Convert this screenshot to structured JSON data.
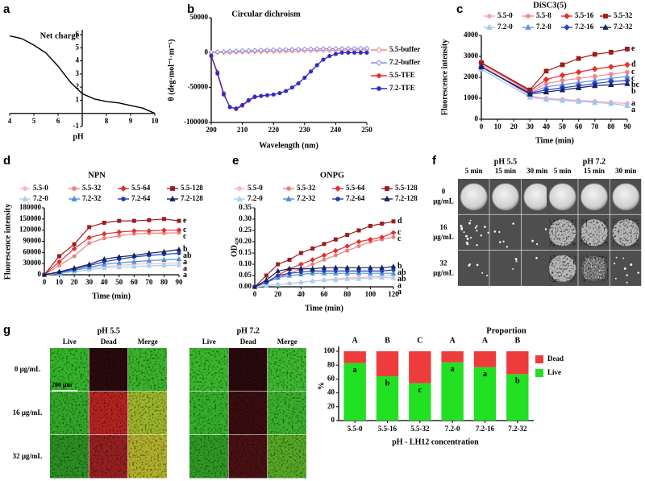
{
  "chart_data": [
    {
      "type": "line",
      "label": "a",
      "title": "Net charge",
      "xlabel": "pH",
      "axis_position": "center",
      "x": [
        4,
        4.5,
        5,
        5.5,
        6,
        6.5,
        7,
        7.5,
        8,
        8.5,
        9,
        9.5,
        10
      ],
      "series": [
        {
          "color": "#000000",
          "values": [
            5.9,
            5.7,
            5.2,
            4.6,
            3.6,
            2.4,
            1.5,
            1.1,
            0.9,
            0.8,
            0.6,
            0.4,
            0.0
          ]
        }
      ],
      "xlim": [
        4,
        10
      ],
      "xticks": [
        4,
        5,
        6,
        8,
        9,
        10
      ],
      "ylim": [
        -1,
        6
      ],
      "yticks": [
        -1,
        1,
        2,
        3,
        4,
        5,
        6
      ]
    },
    {
      "type": "line",
      "label": "b",
      "title": "Circular dichroism",
      "xlabel": "Wavelength (nm)",
      "ylabel": "θ (deg·mol⁻¹·m⁻¹)",
      "legend": "right",
      "x": [
        200,
        202,
        204,
        206,
        208,
        210,
        212,
        214,
        216,
        218,
        220,
        222,
        224,
        226,
        228,
        230,
        232,
        234,
        236,
        238,
        240,
        242,
        244,
        246,
        248,
        250
      ],
      "series": [
        {
          "name": "5.5-buffer",
          "color": "#f08a8a",
          "marker": "diamond-open",
          "values": [
            0,
            200,
            400,
            600,
            800,
            1000,
            1200,
            1400,
            1500,
            1600,
            1800,
            2000,
            2200,
            2400,
            2600,
            2800,
            3000,
            3200,
            3300,
            3400,
            3500,
            3600,
            3700,
            3800,
            3900,
            4000
          ]
        },
        {
          "name": "7.2-buffer",
          "color": "#8a8ee8",
          "marker": "diamond-open",
          "values": [
            500,
            1000,
            1500,
            2000,
            2300,
            2600,
            2900,
            3200,
            3500,
            3800,
            4000,
            4200,
            4400,
            4600,
            4800,
            5000,
            5200,
            5400,
            5600,
            5700,
            5800,
            5900,
            6000,
            6000,
            6100,
            6200
          ]
        },
        {
          "name": "5.5-TFE",
          "color": "#e8302c",
          "marker": "circle",
          "values": [
            -4000,
            -28000,
            -58000,
            -78000,
            -81000,
            -76000,
            -69000,
            -64000,
            -62000,
            -61000,
            -60000,
            -58000,
            -55000,
            -50000,
            -44000,
            -36000,
            -27000,
            -18000,
            -10000,
            -5000,
            -2000,
            0,
            0,
            0,
            0,
            0
          ]
        },
        {
          "name": "7.2-TFE",
          "color": "#2a2fd0",
          "marker": "circle",
          "values": [
            -5000,
            -30000,
            -60000,
            -78000,
            -80000,
            -75000,
            -68000,
            -63000,
            -62000,
            -61000,
            -60000,
            -58000,
            -55000,
            -50000,
            -44000,
            -36000,
            -27000,
            -18000,
            -10000,
            -5000,
            -2000,
            0,
            0,
            0,
            0,
            0
          ]
        }
      ],
      "xlim": [
        200,
        250
      ],
      "xticks": [
        200,
        210,
        220,
        230,
        240,
        250
      ],
      "ylim": [
        -100000,
        50000
      ],
      "yticks": [
        -100000,
        -50000,
        0,
        50000
      ]
    },
    {
      "type": "line",
      "label": "c",
      "title": "DiSC3(5)",
      "xlabel": "Time (min)",
      "ylabel": "Fluorescence intensity",
      "legend": "top",
      "x": [
        0,
        30,
        40,
        50,
        60,
        70,
        80,
        90
      ],
      "series": [
        {
          "name": "5.5-0",
          "color": "#f4a6b8",
          "marker": "circle",
          "end_label": "a",
          "values": [
            2600,
            1100,
            1000,
            950,
            900,
            850,
            800,
            750
          ]
        },
        {
          "name": "5.5-8",
          "color": "#f08a8a",
          "marker": "circle",
          "end_label": "c",
          "values": [
            2650,
            1300,
            1700,
            1850,
            1950,
            2050,
            2150,
            2250
          ]
        },
        {
          "name": "5.5-16",
          "color": "#e8302c",
          "marker": "diamond",
          "end_label": "d",
          "values": [
            2700,
            1350,
            1900,
            2100,
            2250,
            2400,
            2500,
            2600
          ]
        },
        {
          "name": "5.5-32",
          "color": "#9b1c1c",
          "marker": "square",
          "end_label": "e",
          "values": [
            2700,
            1400,
            2300,
            2600,
            2900,
            3100,
            3200,
            3350
          ]
        },
        {
          "name": "7.2-0",
          "color": "#9cc8ee",
          "marker": "triangle",
          "end_label": "a",
          "values": [
            2400,
            1050,
            950,
            900,
            850,
            800,
            750,
            650
          ]
        },
        {
          "name": "7.2-8",
          "color": "#6a8ee8",
          "marker": "triangle",
          "end_label": "c",
          "values": [
            2500,
            1250,
            1550,
            1650,
            1750,
            1850,
            1950,
            2050
          ]
        },
        {
          "name": "7.2-16",
          "color": "#2a45c8",
          "marker": "diamond",
          "end_label": "bc",
          "values": [
            2500,
            1250,
            1400,
            1500,
            1600,
            1700,
            1800,
            1850
          ]
        },
        {
          "name": "7.2-32",
          "color": "#16215e",
          "marker": "triangle",
          "end_label": "b",
          "values": [
            2500,
            1200,
            1300,
            1400,
            1500,
            1600,
            1650,
            1700
          ]
        }
      ],
      "xlim": [
        0,
        90
      ],
      "xticks": [
        0,
        10,
        20,
        30,
        40,
        50,
        60,
        70,
        80,
        90
      ],
      "ylim": [
        0,
        4000
      ],
      "yticks": [
        0,
        1000,
        2000,
        3000,
        4000
      ]
    },
    {
      "type": "line",
      "label": "d",
      "title": "NPN",
      "xlabel": "Time (min)",
      "ylabel": "Fluorescence intensity",
      "legend": "top",
      "x": [
        0,
        10,
        20,
        30,
        40,
        50,
        60,
        70,
        80,
        90
      ],
      "series": [
        {
          "name": "5.5-0",
          "color": "#f7b8c8",
          "marker": "circle",
          "end_label": "a",
          "values": [
            0,
            5000,
            12000,
            18000,
            22000,
            25000,
            28000,
            30000,
            30000,
            32000
          ]
        },
        {
          "name": "5.5-32",
          "color": "#f08080",
          "marker": "circle",
          "end_label": "c",
          "values": [
            0,
            25000,
            50000,
            85000,
            98000,
            105000,
            110000,
            112000,
            112000,
            113000
          ]
        },
        {
          "name": "5.5-64",
          "color": "#e0302e",
          "marker": "diamond",
          "end_label": "c",
          "values": [
            0,
            35000,
            70000,
            100000,
            110000,
            115000,
            118000,
            118000,
            120000,
            120000
          ]
        },
        {
          "name": "5.5-128",
          "color": "#9b1c1c",
          "marker": "square",
          "end_label": "e",
          "values": [
            0,
            50000,
            82000,
            128000,
            140000,
            145000,
            145000,
            147000,
            150000,
            145000
          ]
        },
        {
          "name": "7.2-0",
          "color": "#a8d0f0",
          "marker": "triangle",
          "end_label": "a",
          "values": [
            0,
            3000,
            8000,
            14000,
            18000,
            20000,
            22000,
            24000,
            25000,
            26000
          ]
        },
        {
          "name": "7.2-32",
          "color": "#4a90e0",
          "marker": "triangle",
          "end_label": "a",
          "values": [
            0,
            5000,
            12000,
            20000,
            28000,
            32000,
            35000,
            38000,
            40000,
            42000
          ]
        },
        {
          "name": "7.2-64",
          "color": "#1f3fb8",
          "marker": "circle",
          "end_label": "ab",
          "values": [
            0,
            7000,
            15000,
            25000,
            35000,
            42000,
            48000,
            52000,
            55000,
            58000
          ]
        },
        {
          "name": "7.2-128",
          "color": "#16215e",
          "marker": "triangle",
          "end_label": "b",
          "values": [
            0,
            8000,
            18000,
            28000,
            42000,
            48000,
            52000,
            58000,
            62000,
            68000
          ]
        }
      ],
      "xlim": [
        0,
        90
      ],
      "xticks": [
        0,
        10,
        20,
        30,
        40,
        50,
        60,
        70,
        80,
        90
      ],
      "ylim": [
        0,
        180000
      ],
      "yticks": [
        0,
        30000,
        60000,
        90000,
        120000,
        150000,
        180000
      ]
    },
    {
      "type": "line",
      "label": "e",
      "title": "ONPG",
      "xlabel": "Time (min)",
      "ylabel": "OD₄₂₀",
      "legend": "top",
      "x": [
        0,
        10,
        20,
        30,
        40,
        50,
        60,
        70,
        80,
        90,
        100,
        110,
        120
      ],
      "series": [
        {
          "name": "5.5-0",
          "color": "#f7b8c8",
          "marker": "circle",
          "end_label": "a",
          "values": [
            0,
            0.005,
            0.01,
            0.015,
            0.02,
            0.025,
            0.03,
            0.035,
            0.04,
            0.04,
            0.045,
            0.045,
            0.05
          ]
        },
        {
          "name": "5.5-32",
          "color": "#f08080",
          "marker": "circle",
          "end_label": "c",
          "values": [
            0,
            0.02,
            0.04,
            0.06,
            0.08,
            0.1,
            0.12,
            0.14,
            0.16,
            0.18,
            0.2,
            0.21,
            0.22
          ]
        },
        {
          "name": "5.5-64",
          "color": "#e0302e",
          "marker": "diamond",
          "end_label": "c",
          "values": [
            0,
            0.02,
            0.05,
            0.08,
            0.1,
            0.12,
            0.14,
            0.16,
            0.18,
            0.2,
            0.21,
            0.22,
            0.24
          ]
        },
        {
          "name": "5.5-128",
          "color": "#9b1c1c",
          "marker": "square",
          "end_label": "d",
          "values": [
            0,
            0.05,
            0.1,
            0.12,
            0.15,
            0.17,
            0.19,
            0.21,
            0.23,
            0.25,
            0.27,
            0.28,
            0.29
          ]
        },
        {
          "name": "7.2-0",
          "color": "#a8d0f0",
          "marker": "triangle",
          "end_label": "a",
          "values": [
            0,
            0.005,
            0.01,
            0.015,
            0.02,
            0.025,
            0.03,
            0.03,
            0.035,
            0.035,
            0.04,
            0.04,
            0.04
          ]
        },
        {
          "name": "7.2-32",
          "color": "#4a90e0",
          "marker": "triangle",
          "end_label": "ab",
          "values": [
            0,
            0.02,
            0.04,
            0.05,
            0.055,
            0.06,
            0.06,
            0.06,
            0.06,
            0.06,
            0.06,
            0.06,
            0.06
          ]
        },
        {
          "name": "7.2-64",
          "color": "#1f3fb8",
          "marker": "circle",
          "end_label": "ab",
          "values": [
            0,
            0.02,
            0.05,
            0.06,
            0.065,
            0.07,
            0.07,
            0.07,
            0.07,
            0.07,
            0.07,
            0.07,
            0.075
          ]
        },
        {
          "name": "7.2-128",
          "color": "#16215e",
          "marker": "triangle",
          "end_label": "b",
          "values": [
            0,
            0.03,
            0.07,
            0.08,
            0.08,
            0.08,
            0.085,
            0.085,
            0.085,
            0.085,
            0.085,
            0.085,
            0.09
          ]
        }
      ],
      "xlim": [
        0,
        120
      ],
      "xticks": [
        0,
        20,
        40,
        60,
        80,
        100,
        120
      ],
      "ylim": [
        0,
        0.35
      ],
      "yticks": [
        {
          "value": 0,
          "label": "0.00"
        },
        {
          "value": 0.05,
          "label": "0.05"
        },
        {
          "value": 0.1,
          "label": "0.10"
        },
        {
          "value": 0.15,
          "label": "0.15"
        },
        {
          "value": 0.2,
          "label": "0.20"
        },
        {
          "value": 0.25,
          "label": "0.25"
        },
        {
          "value": 0.3,
          "label": "0.30"
        },
        {
          "value": 0.35,
          "label": "0.35"
        }
      ]
    },
    {
      "type": "bar",
      "stacked": true,
      "title": "Proportion",
      "xlabel": "pH - LH12 concentration",
      "ylabel": "%",
      "categories": [
        "5.5-0",
        "5.5-16",
        "5.5-32",
        "7.2-0",
        "7.2-16",
        "7.2-32"
      ],
      "series": [
        {
          "name": "Live",
          "color": "#22e022",
          "values": [
            83,
            64,
            54,
            84,
            77,
            67
          ]
        },
        {
          "name": "Dead",
          "color": "#ee3b3b",
          "values": [
            17,
            36,
            46,
            16,
            23,
            33
          ]
        }
      ],
      "top_labels": [
        "A",
        "B",
        "C",
        "A",
        "A",
        "B"
      ],
      "live_labels": [
        "a",
        "b",
        "c",
        "a",
        "a",
        "b"
      ],
      "ylim": [
        0,
        100
      ],
      "yticks": [
        0,
        20,
        40,
        60,
        80,
        100
      ]
    }
  ],
  "plates": {
    "label": "f",
    "groups": [
      {
        "title": "pH 5.5",
        "columns": [
          "5 min",
          "15 min",
          "30 min"
        ]
      },
      {
        "title": "pH 7.2",
        "columns": [
          "5 min",
          "15 min",
          "30 min"
        ]
      }
    ],
    "rows": [
      [
        "0",
        "μg/mL"
      ],
      [
        "16",
        "μg/mL"
      ],
      [
        "32",
        "μg/mL"
      ]
    ]
  },
  "staining": {
    "label": "g",
    "groups": [
      {
        "title": "pH 5.5",
        "columns": [
          "Live",
          "Dead",
          "Merge"
        ]
      },
      {
        "title": "pH 7.2",
        "columns": [
          "Live",
          "Dead",
          "Merge"
        ]
      }
    ],
    "rows": [
      "0 μg/mL",
      "16 μg/mL",
      "32 μg/mL"
    ],
    "scale_bar": "200 μm"
  }
}
